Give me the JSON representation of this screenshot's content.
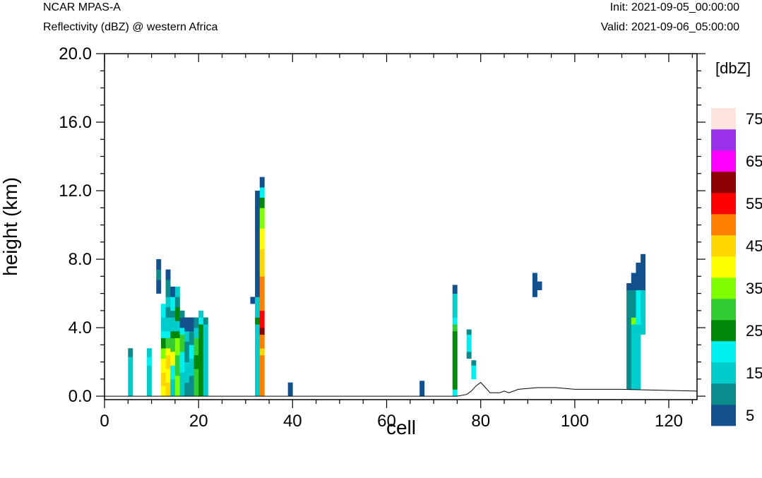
{
  "header": {
    "model": "NCAR MPAS-A",
    "field": "Reflectivity (dBZ) @ western Africa",
    "init": "Init: 2021-09-05_00:00:00",
    "valid": "Valid: 2021-09-06_05:00:00"
  },
  "chart_data": {
    "type": "heatmap",
    "xlabel": "cell",
    "ylabel": "height (km)",
    "xlim": [
      0,
      126
    ],
    "ylim": [
      -0.2,
      20.0
    ],
    "x_ticks": [
      0,
      20,
      40,
      60,
      80,
      100,
      120
    ],
    "x_tick_labels": [
      "0",
      "20",
      "40",
      "60",
      "80",
      "100",
      "120"
    ],
    "y_ticks": [
      0,
      4,
      8,
      12,
      16,
      20
    ],
    "y_tick_labels": [
      "0.0",
      "4.0",
      "8.0",
      "12.0",
      "16.0",
      "20.0"
    ],
    "colorbar": {
      "unit_label": "[dbZ]",
      "levels": [
        5,
        10,
        15,
        20,
        25,
        30,
        35,
        40,
        45,
        50,
        55,
        60,
        65,
        70,
        75
      ],
      "labels": [
        "5",
        "15",
        "25",
        "35",
        "45",
        "55",
        "65",
        "75"
      ],
      "colors": [
        "#12508e",
        "#0a8c8c",
        "#00cccc",
        "#00f0f0",
        "#00880a",
        "#33cc33",
        "#80ff00",
        "#ffff00",
        "#ffd700",
        "#ff8000",
        "#ff0000",
        "#8b0000",
        "#ff00ff",
        "#9932e8",
        "#ffe4de"
      ]
    },
    "columns": [
      {
        "x": 5,
        "cells": [
          [
            0,
            2.3,
            15
          ],
          [
            2.3,
            2.8,
            10
          ]
        ]
      },
      {
        "x": 9,
        "cells": [
          [
            0,
            1.8,
            15
          ],
          [
            1.8,
            2.3,
            20
          ],
          [
            2.3,
            2.8,
            15
          ]
        ]
      },
      {
        "x": 11,
        "cells": [
          [
            6.0,
            6.8,
            5
          ],
          [
            6.8,
            7.4,
            10
          ],
          [
            7.4,
            8.0,
            5
          ]
        ]
      },
      {
        "x": 12,
        "cells": [
          [
            0,
            0.6,
            40
          ],
          [
            0.6,
            1.4,
            45
          ],
          [
            1.4,
            2.2,
            40
          ],
          [
            2.2,
            2.8,
            35
          ],
          [
            2.8,
            3.4,
            25
          ],
          [
            3.4,
            3.8,
            20
          ],
          [
            3.8,
            4.6,
            15
          ],
          [
            4.6,
            5.4,
            20
          ]
        ]
      },
      {
        "x": 13,
        "cells": [
          [
            0,
            0.8,
            45
          ],
          [
            0.8,
            1.6,
            40
          ],
          [
            1.6,
            2.4,
            45
          ],
          [
            2.4,
            2.8,
            40
          ],
          [
            2.8,
            3.4,
            30
          ],
          [
            3.4,
            3.8,
            20
          ],
          [
            3.8,
            4.6,
            15
          ],
          [
            4.6,
            5.2,
            10
          ],
          [
            5.2,
            5.8,
            15
          ],
          [
            5.8,
            6.8,
            10
          ],
          [
            6.8,
            7.4,
            5
          ]
        ]
      },
      {
        "x": 14,
        "cells": [
          [
            0,
            1.0,
            15
          ],
          [
            1.0,
            1.8,
            20
          ],
          [
            1.8,
            2.6,
            40
          ],
          [
            2.6,
            3.4,
            30
          ],
          [
            3.4,
            3.8,
            25
          ],
          [
            3.8,
            4.6,
            15
          ],
          [
            4.6,
            5.0,
            10
          ],
          [
            5.0,
            5.8,
            20
          ],
          [
            5.8,
            6.4,
            5
          ]
        ]
      },
      {
        "x": 15,
        "cells": [
          [
            0,
            1.2,
            35
          ],
          [
            1.2,
            2.4,
            30
          ],
          [
            2.4,
            3.4,
            35
          ],
          [
            3.4,
            3.8,
            25
          ],
          [
            3.8,
            4.4,
            15
          ],
          [
            4.4,
            5.2,
            25
          ],
          [
            5.2,
            5.8,
            10
          ],
          [
            5.8,
            6.4,
            15
          ]
        ]
      },
      {
        "x": 16,
        "cells": [
          [
            0,
            1.4,
            15
          ],
          [
            1.4,
            2.6,
            20
          ],
          [
            2.6,
            3.6,
            30
          ],
          [
            3.6,
            4.0,
            20
          ],
          [
            4.0,
            4.6,
            5
          ],
          [
            4.6,
            5.0,
            10
          ]
        ]
      },
      {
        "x": 17,
        "cells": [
          [
            0,
            0.8,
            10
          ],
          [
            0.8,
            2.0,
            15
          ],
          [
            2.0,
            3.2,
            10
          ],
          [
            3.2,
            3.8,
            15
          ],
          [
            3.8,
            4.6,
            5
          ]
        ]
      },
      {
        "x": 18,
        "cells": [
          [
            0,
            1.2,
            10
          ],
          [
            1.2,
            2.2,
            15
          ],
          [
            2.2,
            3.0,
            20
          ],
          [
            3.0,
            3.8,
            10
          ],
          [
            3.8,
            4.6,
            5
          ]
        ]
      },
      {
        "x": 19,
        "cells": [
          [
            0,
            1.6,
            30
          ],
          [
            1.6,
            2.4,
            25
          ],
          [
            2.4,
            3.4,
            30
          ],
          [
            3.4,
            4.0,
            15
          ],
          [
            4.0,
            4.6,
            10
          ]
        ]
      },
      {
        "x": 20,
        "cells": [
          [
            0,
            4.2,
            25
          ],
          [
            4.2,
            4.6,
            20
          ],
          [
            4.6,
            5.0,
            15
          ]
        ]
      },
      {
        "x": 21,
        "cells": [
          [
            0,
            4.2,
            15
          ],
          [
            4.2,
            4.6,
            10
          ]
        ]
      },
      {
        "x": 31,
        "cells": [
          [
            5.4,
            5.8,
            5
          ]
        ]
      },
      {
        "x": 32,
        "cells": [
          [
            0,
            4.2,
            15
          ],
          [
            4.2,
            4.6,
            25
          ],
          [
            4.6,
            5.8,
            15
          ],
          [
            5.8,
            8.2,
            5
          ],
          [
            8.2,
            12.0,
            5
          ]
        ]
      },
      {
        "x": 33,
        "cells": [
          [
            0,
            2.4,
            50
          ],
          [
            2.4,
            2.8,
            45
          ],
          [
            2.8,
            3.6,
            50
          ],
          [
            3.6,
            4.0,
            60
          ],
          [
            4.0,
            5.0,
            55
          ],
          [
            5.0,
            7.0,
            50
          ],
          [
            7.0,
            8.6,
            45
          ],
          [
            8.6,
            9.8,
            40
          ],
          [
            9.8,
            11.0,
            35
          ],
          [
            11.0,
            11.6,
            25
          ],
          [
            11.6,
            12.2,
            20
          ],
          [
            12.2,
            12.8,
            5
          ]
        ]
      },
      {
        "x": 39,
        "cells": [
          [
            0,
            0.8,
            5
          ]
        ]
      },
      {
        "x": 67,
        "cells": [
          [
            0,
            0.9,
            5
          ]
        ]
      },
      {
        "x": 74,
        "cells": [
          [
            0,
            0.4,
            20
          ],
          [
            0.4,
            3.8,
            25
          ],
          [
            3.8,
            4.2,
            30
          ],
          [
            4.2,
            4.6,
            20
          ],
          [
            4.6,
            6.0,
            15
          ],
          [
            6.0,
            6.5,
            5
          ]
        ]
      },
      {
        "x": 77,
        "cells": [
          [
            2.2,
            2.6,
            10
          ],
          [
            2.6,
            3.6,
            20
          ],
          [
            3.6,
            3.9,
            10
          ]
        ]
      },
      {
        "x": 78,
        "cells": [
          [
            1.0,
            1.8,
            20
          ],
          [
            1.8,
            2.1,
            10
          ]
        ]
      },
      {
        "x": 91,
        "cells": [
          [
            5.8,
            7.2,
            5
          ]
        ]
      },
      {
        "x": 92,
        "cells": [
          [
            6.2,
            6.7,
            5
          ]
        ]
      },
      {
        "x": 111,
        "cells": [
          [
            0.4,
            6.2,
            10
          ],
          [
            6.2,
            6.6,
            5
          ]
        ]
      },
      {
        "x": 112,
        "cells": [
          [
            0.4,
            4.2,
            15
          ],
          [
            4.2,
            4.6,
            35
          ],
          [
            4.6,
            6.2,
            10
          ],
          [
            6.2,
            7.2,
            5
          ]
        ]
      },
      {
        "x": 113,
        "cells": [
          [
            0.4,
            4.2,
            15
          ],
          [
            4.2,
            6.2,
            20
          ],
          [
            6.2,
            7.8,
            5
          ]
        ]
      },
      {
        "x": 114,
        "cells": [
          [
            3.6,
            6.2,
            15
          ],
          [
            6.2,
            8.3,
            5
          ]
        ]
      }
    ],
    "terrain": [
      [
        0,
        0
      ],
      [
        75,
        0
      ],
      [
        77,
        0.1
      ],
      [
        78,
        0.3
      ],
      [
        79,
        0.6
      ],
      [
        80,
        0.8
      ],
      [
        81,
        0.5
      ],
      [
        82,
        0.2
      ],
      [
        84,
        0.2
      ],
      [
        85,
        0.3
      ],
      [
        86,
        0.2
      ],
      [
        88,
        0.4
      ],
      [
        92,
        0.5
      ],
      [
        96,
        0.5
      ],
      [
        100,
        0.4
      ],
      [
        104,
        0.4
      ],
      [
        110,
        0.4
      ],
      [
        126,
        0.3
      ]
    ]
  }
}
